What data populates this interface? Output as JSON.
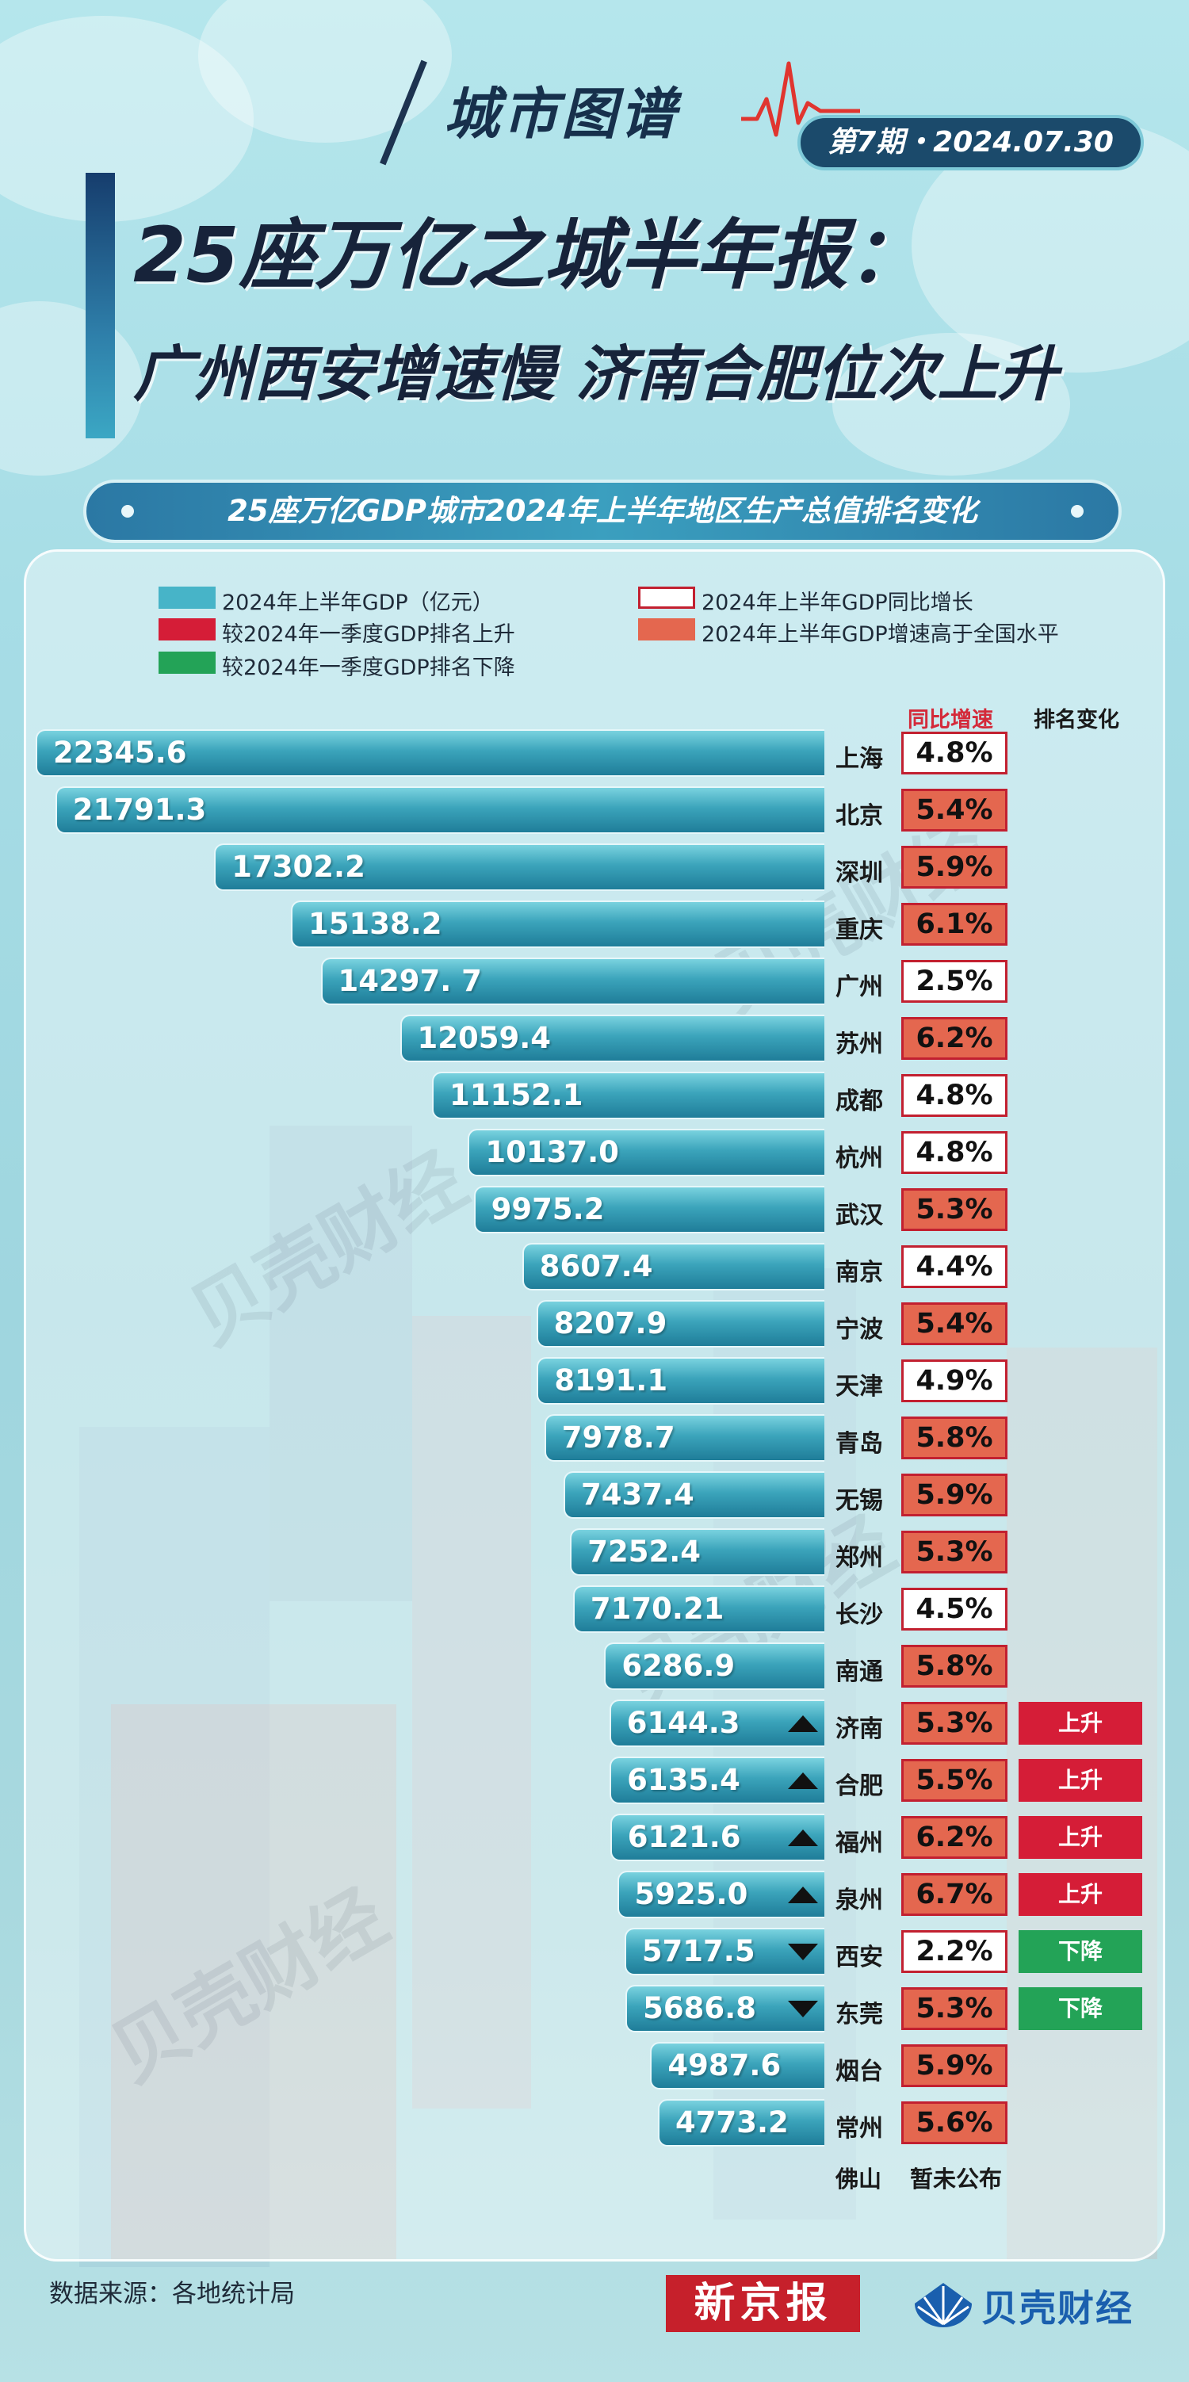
{
  "header": {
    "series": "城市图谱",
    "issue": "第7期・2024.07.30",
    "headline_line1": "25座万亿之城半年报：",
    "headline_line2": "广州西安增速慢 济南合肥位次上升",
    "subtitle": "25座万亿GDP城市2024年上半年地区生产总值排名变化"
  },
  "legend": {
    "gdp": "2024年上半年GDP（亿元）",
    "rank_up": "较2024年一季度GDP排名上升",
    "rank_down": "较2024年一季度GDP排名下降",
    "growth": "2024年上半年GDP同比增长",
    "above_national": "2024年上半年GDP增速高于全国水平"
  },
  "columns": {
    "growth": "同比增速",
    "rank_change": "排名变化"
  },
  "colors": {
    "bar": "#3ba4bb",
    "above_national": "#e4674f",
    "growth_border": "#c22030",
    "rank_up": "#d51d37",
    "rank_down": "#23a357"
  },
  "chart_data": {
    "type": "bar",
    "orientation": "horizontal",
    "categories": [
      "上海",
      "北京",
      "深圳",
      "重庆",
      "广州",
      "苏州",
      "成都",
      "杭州",
      "武汉",
      "南京",
      "宁波",
      "天津",
      "青岛",
      "无锡",
      "郑州",
      "长沙",
      "南通",
      "济南",
      "合肥",
      "福州",
      "泉州",
      "西安",
      "东莞",
      "烟台",
      "常州"
    ],
    "value_labels": [
      "22345.6",
      "21791.3",
      "17302.2",
      "15138.2",
      "14297. 7",
      "12059.4",
      "11152.1",
      "10137.0",
      "9975.2",
      "8607.4",
      "8207.9",
      "8191.1",
      "7978.7",
      "7437.4",
      "7252.4",
      "7170.21",
      "6286.9",
      "6144.3",
      "6135.4",
      "6121.6",
      "5925.0",
      "5717.5",
      "5686.8",
      "4987.6",
      "4773.2"
    ],
    "values": [
      22345.6,
      21791.3,
      17302.2,
      15138.2,
      14297.7,
      12059.4,
      11152.1,
      10137.0,
      9975.2,
      8607.4,
      8207.9,
      8191.1,
      7978.7,
      7437.4,
      7252.4,
      7170.21,
      6286.9,
      6144.3,
      6135.4,
      6121.6,
      5925.0,
      5717.5,
      5686.8,
      4987.6,
      4773.2
    ],
    "growth": [
      "4.8%",
      "5.4%",
      "5.9%",
      "6.1%",
      "2.5%",
      "6.2%",
      "4.8%",
      "4.8%",
      "5.3%",
      "4.4%",
      "5.4%",
      "4.9%",
      "5.8%",
      "5.9%",
      "5.3%",
      "4.5%",
      "5.8%",
      "5.3%",
      "5.5%",
      "6.2%",
      "6.7%",
      "2.2%",
      "5.3%",
      "5.9%",
      "5.6%"
    ],
    "above_national": [
      false,
      true,
      true,
      true,
      false,
      true,
      false,
      false,
      true,
      false,
      true,
      false,
      true,
      true,
      true,
      false,
      true,
      true,
      true,
      true,
      true,
      false,
      true,
      true,
      true
    ],
    "rank_change": [
      "",
      "",
      "",
      "",
      "",
      "",
      "",
      "",
      "",
      "",
      "",
      "",
      "",
      "",
      "",
      "",
      "",
      "上升",
      "上升",
      "上升",
      "上升",
      "下降",
      "下降",
      "",
      ""
    ],
    "unreported_city": "佛山",
    "unreported_text": "暂未公布"
  },
  "footer": {
    "source": "数据来源：各地统计局",
    "logo1": "新京报",
    "logo2": "贝壳财经"
  },
  "watermark": "贝壳财经"
}
